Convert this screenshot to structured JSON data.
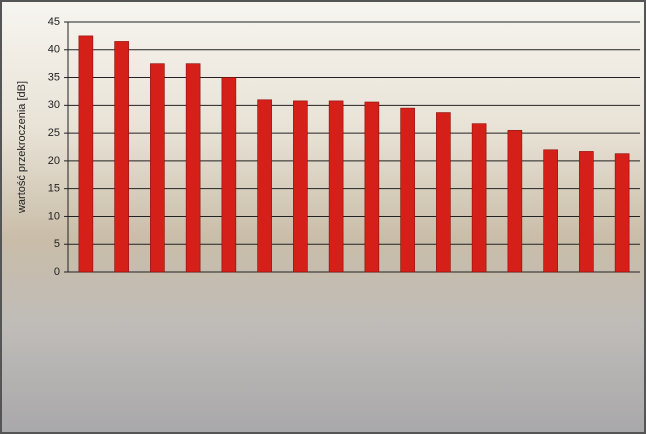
{
  "chart_data": {
    "type": "bar",
    "y_label": "wartość przekroczenia [dB]",
    "categories": [
      null,
      null,
      null,
      null,
      null,
      null,
      null,
      null,
      null,
      null,
      null,
      null,
      null,
      null,
      null,
      null
    ],
    "values": [
      42.5,
      41.5,
      37.5,
      37.5,
      35,
      31,
      30.8,
      30.8,
      30.6,
      29.5,
      28.7,
      26.7,
      25.5,
      22,
      21.7,
      21.3
    ],
    "color": "#d42018",
    "ylim": [
      0,
      45
    ],
    "yticks": [
      0,
      5,
      10,
      15,
      20,
      25,
      30,
      35,
      40,
      45
    ],
    "grid": true
  }
}
